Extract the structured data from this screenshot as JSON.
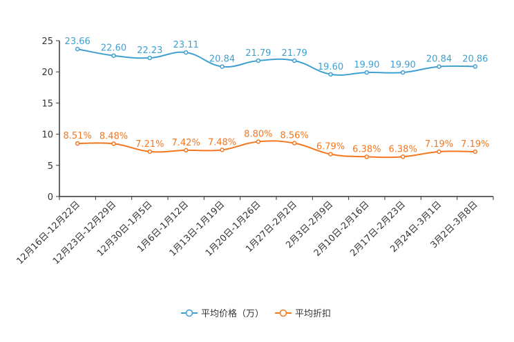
{
  "chart_data": {
    "type": "line",
    "title": "",
    "xlabel": "",
    "ylabel": "",
    "ylim": [
      0,
      25
    ],
    "yticks": [
      0,
      5,
      10,
      15,
      20,
      25
    ],
    "grid": false,
    "legend_position": "bottom-center",
    "categories": [
      "12月16日-12月22日",
      "12月23日-12月29日",
      "12月30日-1月5日",
      "1月6日-1月12日",
      "1月13日-1月19日",
      "1月20日-1月26日",
      "1月27日-2月2日",
      "2月3日-2月9日",
      "2月10日-2月16日",
      "2月17日-2月23日",
      "2月24日-3月1日",
      "3月2日-3月8日"
    ],
    "series": [
      {
        "name": "平均价格（万）",
        "color": "#3e9fd0",
        "values": [
          23.66,
          22.6,
          22.23,
          23.11,
          20.84,
          21.79,
          21.79,
          19.6,
          19.9,
          19.9,
          20.84,
          20.86
        ],
        "labels": [
          "23.66",
          "22.60",
          "22.23",
          "23.11",
          "20.84",
          "21.79",
          "21.79",
          "19.60",
          "19.90",
          "19.90",
          "20.84",
          "20.86"
        ]
      },
      {
        "name": "平均折扣",
        "color": "#f3771e",
        "values": [
          8.51,
          8.48,
          7.21,
          7.42,
          7.48,
          8.8,
          8.56,
          6.79,
          6.38,
          6.38,
          7.19,
          7.19
        ],
        "labels": [
          "8.51%",
          "8.48%",
          "7.21%",
          "7.42%",
          "7.48%",
          "8.80%",
          "8.56%",
          "6.79%",
          "6.38%",
          "6.38%",
          "7.19%",
          "7.19%"
        ]
      }
    ]
  }
}
